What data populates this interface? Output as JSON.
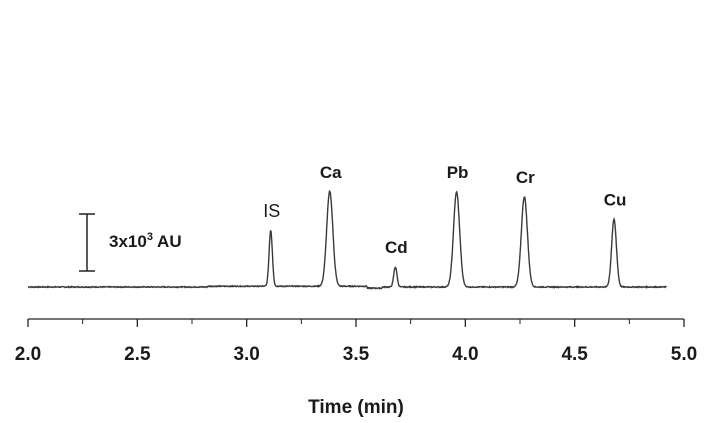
{
  "chart_data": {
    "type": "line",
    "title": "",
    "xlabel": "Time (min)",
    "ylabel": "",
    "xlim": [
      2.0,
      5.0
    ],
    "x_ticks": [
      "2.0",
      "2.5",
      "3.0",
      "3.5",
      "4.0",
      "4.5",
      "5.0"
    ],
    "grid": false,
    "scale_bar": {
      "label_main": "3x10",
      "label_sup": "3",
      "label_unit": " AU",
      "value": 3000
    },
    "baseline": 0,
    "peaks": [
      {
        "name": "IS",
        "time": 3.11,
        "height": 2950
      },
      {
        "name": "Ca",
        "time": 3.38,
        "height": 5000
      },
      {
        "name": "Cd",
        "time": 3.68,
        "height": 1050
      },
      {
        "name": "Pb",
        "time": 3.96,
        "height": 5000
      },
      {
        "name": "Cr",
        "time": 4.27,
        "height": 4750
      },
      {
        "name": "Cu",
        "time": 4.68,
        "height": 3550
      }
    ],
    "trace_range": [
      2.0,
      4.92
    ]
  }
}
